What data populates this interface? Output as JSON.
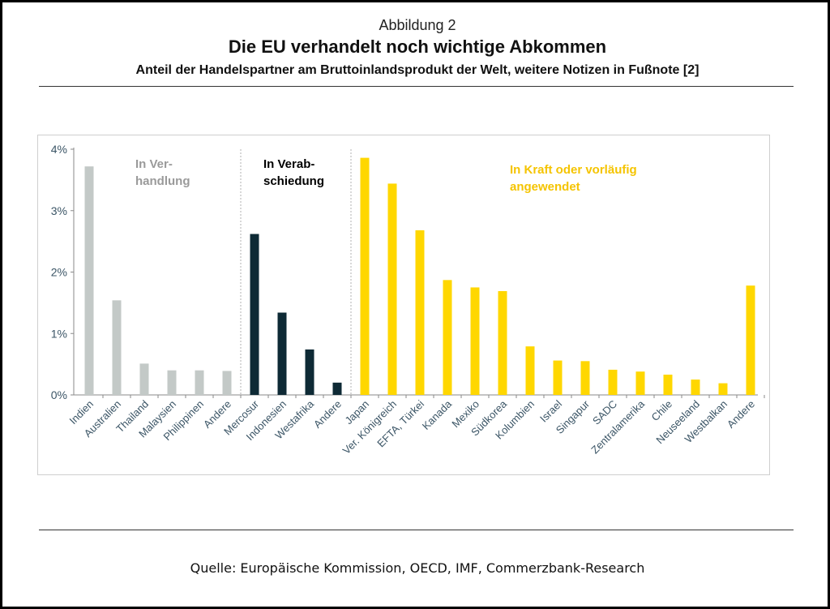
{
  "header": {
    "figure_label": "Abbildung 2",
    "title": "Die EU verhandelt noch wichtige Abkommen",
    "subtitle": "Anteil der Handelspartner am Bruttoinlandsprodukt der Welt, weitere Notizen in Fußnote [2]"
  },
  "footer": {
    "source": "Quelle: Europäische Kommission, OECD, IMF, Commerzbank-Research"
  },
  "colors": {
    "negotiation": "#c3c9c7",
    "adoption": "#0e2a35",
    "in_force": "#ffd700",
    "axis_text": "#3b5566",
    "gray_label": "#9a9a9a",
    "black_label": "#000000",
    "yellow_label": "#f5c400"
  },
  "chart_data": {
    "type": "bar",
    "title": "Die EU verhandelt noch wichtige Abkommen",
    "xlabel": "",
    "ylabel": "",
    "ylim": [
      0,
      4
    ],
    "yticks": [
      "0%",
      "1%",
      "2%",
      "3%",
      "4%"
    ],
    "grid": false,
    "groups": [
      {
        "name": "In Verhandlung",
        "label_lines": [
          "In Ver-",
          "handlung"
        ],
        "color_key": "negotiation",
        "categories": [
          "Indien",
          "Australien",
          "Thailand",
          "Malaysien",
          "Philippinen",
          "Andere"
        ],
        "values": [
          3.72,
          1.54,
          0.51,
          0.4,
          0.4,
          0.39
        ]
      },
      {
        "name": "In Verabschiedung",
        "label_lines": [
          "In Verab-",
          "schiedung"
        ],
        "color_key": "adoption",
        "categories": [
          "Mercosur",
          "Indonesien",
          "Westafrika",
          "Andere"
        ],
        "values": [
          2.62,
          1.34,
          0.74,
          0.2
        ]
      },
      {
        "name": "In Kraft oder vorläufig angewendet",
        "label_lines": [
          "In Kraft oder vorläufig",
          "angewendet"
        ],
        "color_key": "in_force",
        "categories": [
          "Japan",
          "Ver. Königreich",
          "EFTA, Türkei",
          "Kanada",
          "Mexiko",
          "Südkorea",
          "Kolumbien",
          "Israel",
          "Singapur",
          "SADC",
          "Zentralamerika",
          "Chile",
          "Neuseeland",
          "Westbalkan",
          "Andere"
        ],
        "values": [
          3.86,
          3.44,
          2.68,
          1.87,
          1.75,
          1.69,
          0.79,
          0.56,
          0.55,
          0.41,
          0.38,
          0.33,
          0.25,
          0.19,
          1.78
        ]
      }
    ]
  }
}
